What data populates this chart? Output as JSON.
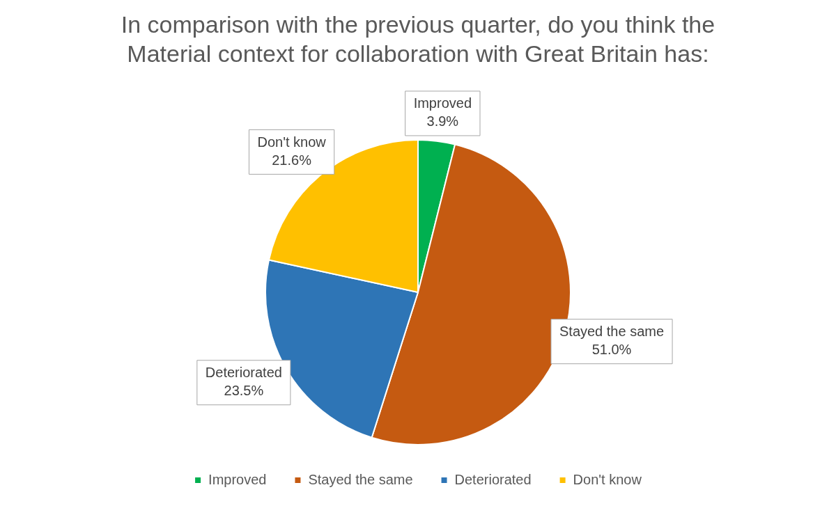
{
  "chart_data": {
    "type": "pie",
    "title": "In comparison with the previous quarter, do you think the Material context for collaboration with Great Britain has:",
    "categories": [
      "Improved",
      "Stayed the same",
      "Deteriorated",
      "Don't know"
    ],
    "values": [
      3.9,
      51.0,
      23.5,
      21.6
    ],
    "value_labels": [
      "3.9%",
      "51.0%",
      "23.5%",
      "21.6%"
    ],
    "colors": [
      "#00b050",
      "#c55a11",
      "#2e75b6",
      "#ffc000"
    ],
    "legend": "bottom"
  }
}
